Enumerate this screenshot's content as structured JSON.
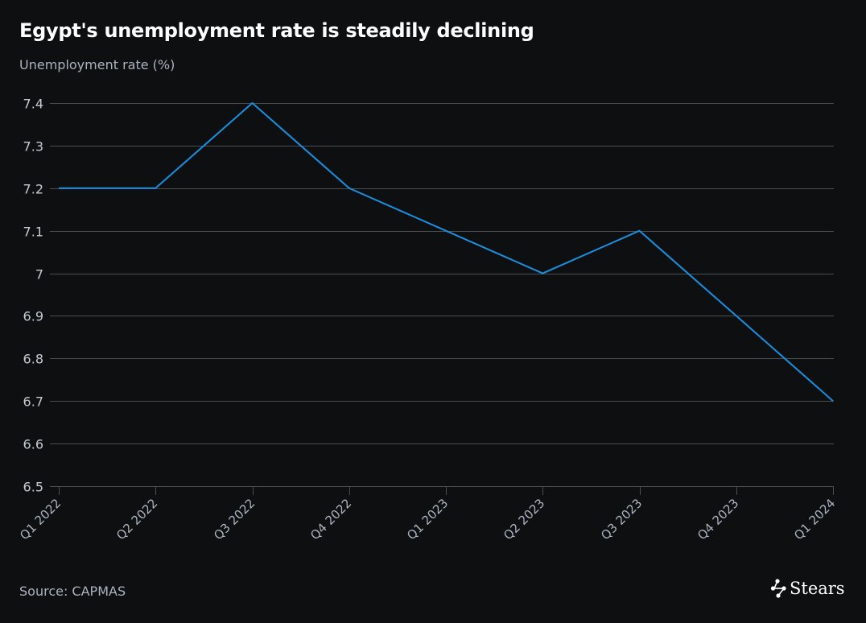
{
  "header": {
    "title": "Egypt's unemployment rate is steadily declining",
    "subtitle": "Unemployment rate (%)"
  },
  "footer": {
    "source": "Source: CAPMAS",
    "brand": "Stears",
    "brand_icon": "network-nodes-icon"
  },
  "colors": {
    "background": "#0e0f11",
    "line": "#1a8fe0",
    "grid": "#4a4d52",
    "text": "#aab4c0",
    "title": "#ffffff"
  },
  "chart_data": {
    "type": "line",
    "title": "Egypt's unemployment rate is steadily declining",
    "subtitle": "Unemployment rate (%)",
    "xlabel": "",
    "ylabel": "Unemployment rate (%)",
    "categories": [
      "Q1 2022",
      "Q2 2022",
      "Q3 2022",
      "Q4 2022",
      "Q1 2023",
      "Q2 2023",
      "Q3 2023",
      "Q4 2023",
      "Q1 2024"
    ],
    "series": [
      {
        "name": "Unemployment rate (%)",
        "values": [
          7.2,
          7.2,
          7.4,
          7.2,
          7.1,
          7.0,
          7.1,
          6.9,
          6.7
        ]
      }
    ],
    "ylim": [
      6.5,
      7.4
    ],
    "yticks": [
      "7.4",
      "7.3",
      "7.2",
      "7.1",
      "7",
      "6.9",
      "6.8",
      "6.7",
      "6.6",
      "6.5"
    ],
    "grid": true,
    "legend": "none",
    "source": "CAPMAS"
  }
}
